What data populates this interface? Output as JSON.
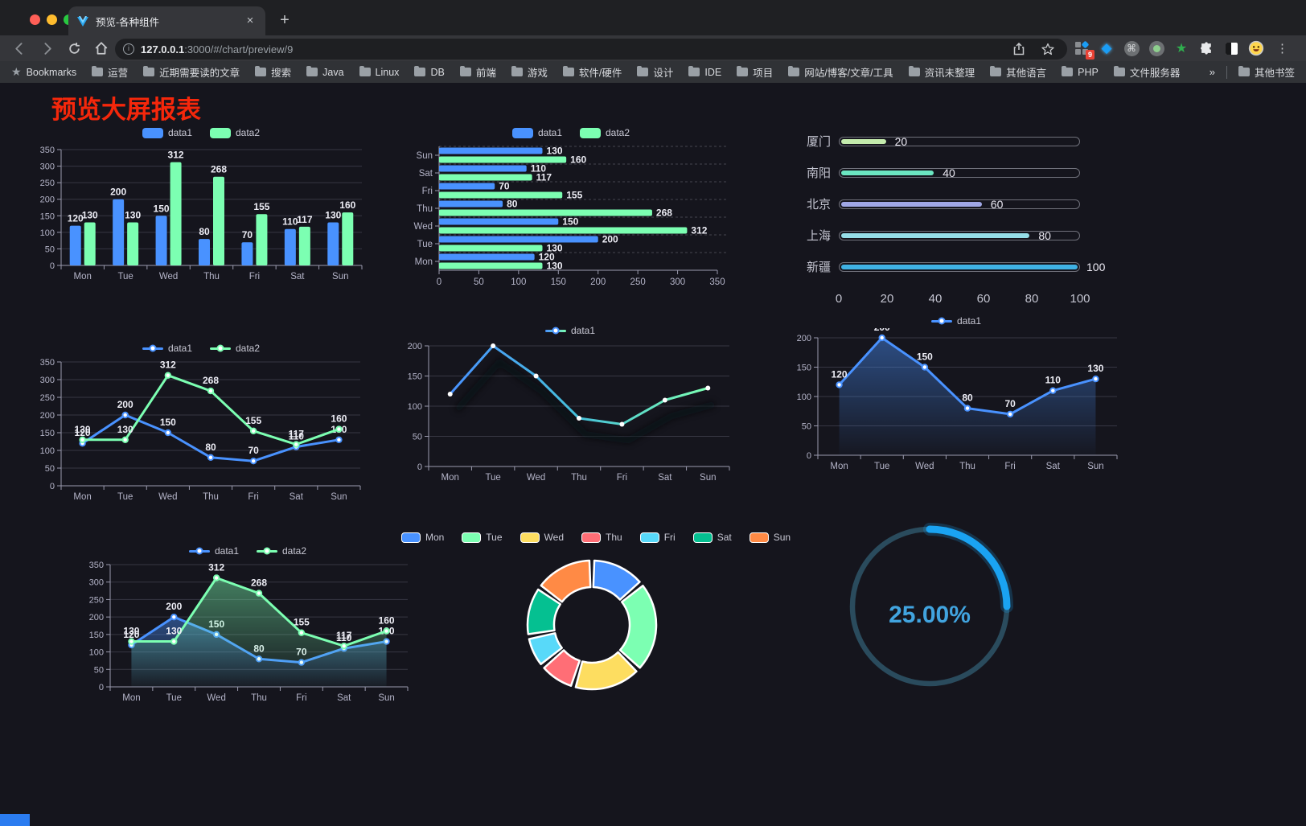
{
  "browser": {
    "tab_title": "预览-各种组件",
    "url_host": "127.0.0.1",
    "url_rest": ":3000/#/chart/preview/9",
    "extensions_badge": "9",
    "bookmarks_label": "Bookmarks",
    "bookmarks": [
      "运营",
      "近期需要读的文章",
      "搜索",
      "Java",
      "Linux",
      "DB",
      "前端",
      "游戏",
      "软件/硬件",
      "设计",
      "IDE",
      "项目",
      "网站/博客/文章/工具",
      "资讯未整理",
      "其他语言",
      "PHP",
      "文件服务器"
    ],
    "overflow_chevron": "»",
    "other_bookmarks": "其他书签"
  },
  "page": {
    "title": "预览大屏报表",
    "title_color": "#f5270b"
  },
  "chart_data": [
    {
      "id": "c1",
      "type": "bar",
      "categories": [
        "Mon",
        "Tue",
        "Wed",
        "Thu",
        "Fri",
        "Sat",
        "Sun"
      ],
      "series": [
        {
          "name": "data1",
          "color": "#4992ff",
          "values": [
            120,
            200,
            150,
            80,
            70,
            110,
            130
          ]
        },
        {
          "name": "data2",
          "color": "#7cffb2",
          "values": [
            130,
            130,
            312,
            268,
            155,
            117,
            160
          ]
        }
      ],
      "ylim": [
        0,
        350
      ],
      "yticks": [
        0,
        50,
        100,
        150,
        200,
        250,
        300,
        350
      ],
      "labels": true,
      "legend_pos": "top",
      "grid": true
    },
    {
      "id": "c2",
      "type": "hbar",
      "categories": [
        "Sun",
        "Sat",
        "Fri",
        "Thu",
        "Wed",
        "Tue",
        "Mon"
      ],
      "series": [
        {
          "name": "data1",
          "color": "#4992ff",
          "values": [
            130,
            110,
            70,
            80,
            150,
            200,
            120
          ]
        },
        {
          "name": "data2",
          "color": "#7cffb2",
          "values": [
            160,
            117,
            155,
            268,
            312,
            130,
            130
          ]
        }
      ],
      "xlim": [
        0,
        350
      ],
      "xticks": [
        0,
        50,
        100,
        150,
        200,
        250,
        300,
        350
      ],
      "labels": true,
      "legend_pos": "top"
    },
    {
      "id": "c3",
      "type": "progress",
      "max": 100,
      "items": [
        {
          "label": "厦门",
          "value": 20,
          "color": "#c4ebad"
        },
        {
          "label": "南阳",
          "value": 40,
          "color": "#6be6c1"
        },
        {
          "label": "北京",
          "value": 60,
          "color": "#a0a7e6"
        },
        {
          "label": "上海",
          "value": 80,
          "color": "#96dee8"
        },
        {
          "label": "新疆",
          "value": 100,
          "color": "#3fb1e3"
        }
      ],
      "xticks": [
        0,
        20,
        40,
        60,
        80,
        100
      ]
    },
    {
      "id": "c4",
      "type": "line",
      "categories": [
        "Mon",
        "Tue",
        "Wed",
        "Thu",
        "Fri",
        "Sat",
        "Sun"
      ],
      "series": [
        {
          "name": "data1",
          "color": "#4992ff",
          "values": [
            120,
            200,
            150,
            80,
            70,
            110,
            130
          ]
        },
        {
          "name": "data2",
          "color": "#7cffb2",
          "values": [
            130,
            130,
            312,
            268,
            155,
            117,
            160
          ]
        }
      ],
      "ylim": [
        0,
        350
      ],
      "yticks": [
        0,
        50,
        100,
        150,
        200,
        250,
        300,
        350
      ],
      "labels": true,
      "area": false
    },
    {
      "id": "c5",
      "type": "line-gradient",
      "categories": [
        "Mon",
        "Tue",
        "Wed",
        "Thu",
        "Fri",
        "Sat",
        "Sun"
      ],
      "series": [
        {
          "name": "data1",
          "gradient": [
            "#4992ff",
            "#46c1d9",
            "#7cffb2"
          ],
          "values": [
            120,
            200,
            150,
            80,
            70,
            110,
            130
          ]
        }
      ],
      "ylim": [
        0,
        200
      ],
      "yticks": [
        0,
        50,
        100,
        150,
        200
      ],
      "labels": false,
      "shadow": true
    },
    {
      "id": "c6",
      "type": "line-area",
      "categories": [
        "Mon",
        "Tue",
        "Wed",
        "Thu",
        "Fri",
        "Sat",
        "Sun"
      ],
      "series": [
        {
          "name": "data1",
          "color": "#4992ff",
          "values": [
            120,
            200,
            150,
            80,
            70,
            110,
            130
          ]
        }
      ],
      "ylim": [
        0,
        200
      ],
      "yticks": [
        0,
        50,
        100,
        150,
        200
      ],
      "labels": true
    },
    {
      "id": "c7",
      "type": "line",
      "categories": [
        "Mon",
        "Tue",
        "Wed",
        "Thu",
        "Fri",
        "Sat",
        "Sun"
      ],
      "series": [
        {
          "name": "data1",
          "color": "#4992ff",
          "values": [
            120,
            200,
            150,
            80,
            70,
            110,
            130
          ]
        },
        {
          "name": "data2",
          "color": "#7cffb2",
          "values": [
            130,
            130,
            312,
            268,
            155,
            117,
            160
          ]
        }
      ],
      "ylim": [
        0,
        350
      ],
      "yticks": [
        0,
        50,
        100,
        150,
        200,
        250,
        300,
        350
      ],
      "labels": true,
      "area": true
    },
    {
      "id": "c8",
      "type": "donut",
      "items": [
        {
          "label": "Mon",
          "value": 120,
          "color": "#4992ff"
        },
        {
          "label": "Tue",
          "value": 200,
          "color": "#7cffb2"
        },
        {
          "label": "Wed",
          "value": 150,
          "color": "#fddd60"
        },
        {
          "label": "Thu",
          "value": 80,
          "color": "#ff6e76"
        },
        {
          "label": "Fri",
          "value": 70,
          "color": "#58d9f9"
        },
        {
          "label": "Sat",
          "value": 110,
          "color": "#05c091"
        },
        {
          "label": "Sun",
          "value": 130,
          "color": "#ff8a45"
        }
      ]
    },
    {
      "id": "c9",
      "type": "gauge",
      "value": 25,
      "text": "25.00%",
      "arc_color": "#1aa3f2",
      "track_color": "#2a4b5d",
      "text_color": "#41a4df"
    }
  ]
}
